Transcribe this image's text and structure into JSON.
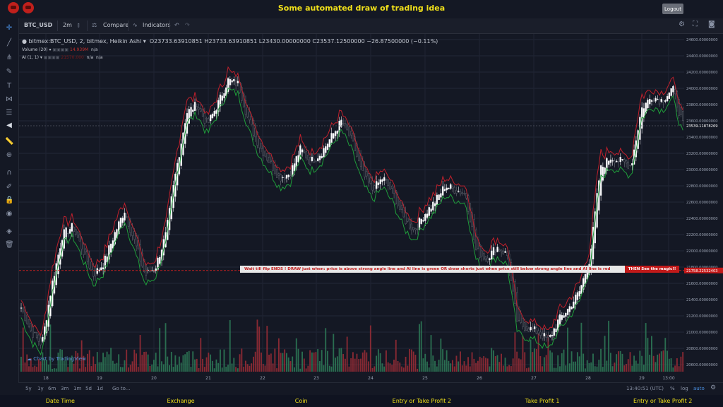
{
  "header": {
    "title": "Some automated draw of trading idea",
    "logout_label": "Logout"
  },
  "toolbar": {
    "symbol": "BTC_USD",
    "interval": "2m",
    "compare": "Compare",
    "indicators": "Indicators"
  },
  "legend": {
    "main": "bitmex:BTC_USD, 2, bitmex, Heikin Ashi",
    "ohlc": "O23733.63910851  H23733.63910851  L23430.00000000  C23537.12500000  −26.87500000 (−0.11%)",
    "volume": "Volume (20)",
    "volume_value": "14.939M",
    "volume_na": "n/a",
    "ai": "AI (1, 1)",
    "ai_value": "21570.000",
    "ai_na1": "n/a",
    "ai_na2": "n/a"
  },
  "banner": {
    "text": "Wait till flip ENDS !   DRAW just when:  price is above strong angle line and AI line is green        OR        draw shorts just when price still below strong angle line and AI line is red",
    "tag": "THEN See the magic!!"
  },
  "watermark": "Chart by TradingView",
  "bottom": {
    "ranges": [
      "5y",
      "1y",
      "6m",
      "3m",
      "1m",
      "5d",
      "1d"
    ],
    "goto": "Go to...",
    "time": "13:40:51 (UTC)",
    "percent": "%",
    "log": "log",
    "auto": "auto"
  },
  "footer": {
    "items": [
      "Date Time",
      "Exchange",
      "Coin",
      "Entry or Take Profit 2",
      "Take Profit 1",
      "Entry or Take Profit 2"
    ]
  },
  "colors": {
    "accent": "#f0e01a",
    "up": "#2e7d58",
    "down": "#9c2d36",
    "green_line": "#1f9e3a",
    "red_line": "#c0202c"
  },
  "chart_data": {
    "type": "candlestick",
    "price_ticks": [
      24600,
      24400,
      24200,
      24000,
      23800,
      23600,
      23400,
      23200,
      23000,
      22800,
      22600,
      22400,
      22200,
      22000,
      21800,
      21600,
      21400,
      21200,
      21000,
      20800,
      20600
    ],
    "tick_labels": [
      "24600.00000000",
      "24400.00000000",
      "24200.00000000",
      "24000.00000000",
      "23800.00000000",
      "23600.00000000",
      "23400.00000000",
      "23200.00000000",
      "23000.00000000",
      "22800.00000000",
      "22600.00000000",
      "22400.00000000",
      "22200.00000000",
      "22000.00000000",
      "21800.00000000",
      "21600.00000000",
      "21400.00000000",
      "21200.00000000",
      "21000.00000000",
      "20800.00000000",
      "20600.00000000"
    ],
    "current_price_label": "23539.11878269",
    "level_price_label": "21758.22532403",
    "current_price": 23539.11878269,
    "level_price": 21758.22532403,
    "x_labels": [
      "18",
      "19",
      "20",
      "21",
      "22",
      "23",
      "24",
      "25",
      "26",
      "27",
      "28",
      "29",
      "13:00"
    ],
    "close": [
      21300,
      21000,
      20850,
      21600,
      22200,
      22300,
      22000,
      21700,
      21850,
      22200,
      22500,
      22100,
      21700,
      21800,
      22200,
      23000,
      23700,
      23800,
      23550,
      23800,
      24100,
      24050,
      23600,
      23300,
      23100,
      22900,
      22950,
      23250,
      23100,
      23200,
      23400,
      23600,
      23350,
      22950,
      22750,
      22900,
      22700,
      22400,
      22250,
      22450,
      22600,
      22800,
      22750,
      22700,
      22000,
      21900,
      22050,
      21950,
      21100,
      21050,
      21000,
      20900,
      21150,
      21300,
      21500,
      21900,
      23000,
      23150,
      23100,
      23050,
      23750,
      23900,
      23850,
      24000,
      23550
    ]
  }
}
